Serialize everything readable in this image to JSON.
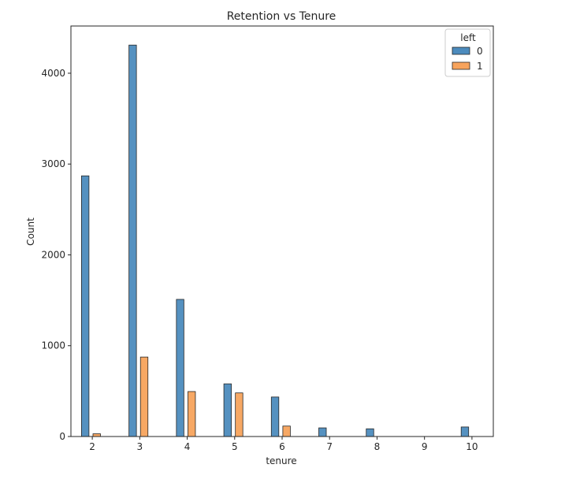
{
  "chart_data": {
    "type": "bar",
    "title": "Retention vs Tenure",
    "xlabel": "tenure",
    "ylabel": "Count",
    "x_ticks": [
      2,
      3,
      4,
      5,
      6,
      7,
      8,
      9,
      10
    ],
    "y_ticks": [
      0,
      1000,
      2000,
      3000,
      4000
    ],
    "xlim": [
      1.55,
      10.45
    ],
    "ylim": [
      0,
      4520
    ],
    "grid": false,
    "legend": {
      "title": "left",
      "placement": "top-right"
    },
    "categories": [
      2,
      3,
      4,
      5,
      6,
      7,
      8,
      9,
      10
    ],
    "series": [
      {
        "name": "0",
        "color": "#4c8bbd",
        "values": [
          2870,
          4310,
          1510,
          580,
          435,
          95,
          85,
          0,
          105
        ]
      },
      {
        "name": "1",
        "color": "#f7a35c",
        "values": [
          30,
          875,
          495,
          480,
          115,
          0,
          0,
          0,
          0
        ]
      }
    ]
  }
}
